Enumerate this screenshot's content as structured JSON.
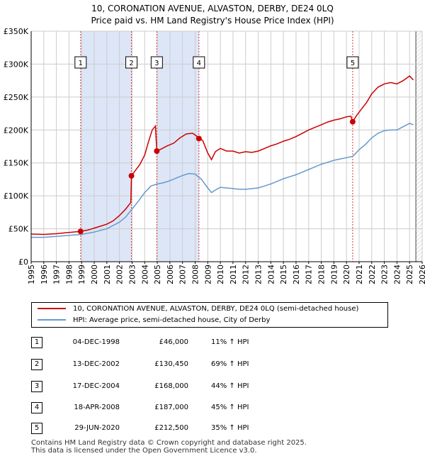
{
  "title_line1": "10, CORONATION AVENUE, ALVASTON, DERBY, DE24 0LQ",
  "title_line2": "Price paid vs. HM Land Registry's House Price Index (HPI)",
  "colors": {
    "price": "#cc0000",
    "hpi": "#6699cc",
    "shade": "#dde6f7",
    "grid": "#cccccc",
    "vline": "#dd3333"
  },
  "chart_data": {
    "type": "line",
    "xlim": [
      1995,
      2026
    ],
    "ylim": [
      0,
      350000
    ],
    "y_ticks": [
      0,
      50000,
      100000,
      150000,
      200000,
      250000,
      300000,
      350000
    ],
    "y_tick_labels": [
      "£0",
      "£50K",
      "£100K",
      "£150K",
      "£200K",
      "£250K",
      "£300K",
      "£350K"
    ],
    "x_ticks": [
      "1995",
      "1996",
      "1997",
      "1998",
      "1999",
      "2000",
      "2001",
      "2002",
      "2003",
      "2004",
      "2005",
      "2006",
      "2007",
      "2008",
      "2009",
      "2010",
      "2011",
      "2012",
      "2013",
      "2014",
      "2015",
      "2016",
      "2017",
      "2018",
      "2019",
      "2020",
      "2021",
      "2022",
      "2023",
      "2024",
      "2025",
      "2026"
    ],
    "series": [
      {
        "name": "10, CORONATION AVENUE, ALVASTON, DERBY, DE24 0LQ (semi-detached house)",
        "points": [
          [
            1995.0,
            42000
          ],
          [
            1996.0,
            41500
          ],
          [
            1997.0,
            42500
          ],
          [
            1998.0,
            44500
          ],
          [
            1998.92,
            46000
          ],
          [
            1999.5,
            48000
          ],
          [
            2000.0,
            51000
          ],
          [
            2000.5,
            54000
          ],
          [
            2001.0,
            57000
          ],
          [
            2001.5,
            62000
          ],
          [
            2002.0,
            70000
          ],
          [
            2002.5,
            80000
          ],
          [
            2002.9,
            90000
          ],
          [
            2002.95,
            130450
          ],
          [
            2003.2,
            137000
          ],
          [
            2003.6,
            147000
          ],
          [
            2004.0,
            162000
          ],
          [
            2004.3,
            182000
          ],
          [
            2004.6,
            200000
          ],
          [
            2004.85,
            206000
          ],
          [
            2004.96,
            168000
          ],
          [
            2005.3,
            171000
          ],
          [
            2005.8,
            176000
          ],
          [
            2006.3,
            180000
          ],
          [
            2006.8,
            188000
          ],
          [
            2007.3,
            194000
          ],
          [
            2007.8,
            195000
          ],
          [
            2008.1,
            191000
          ],
          [
            2008.3,
            187000
          ],
          [
            2008.6,
            184000
          ],
          [
            2009.0,
            165000
          ],
          [
            2009.3,
            155000
          ],
          [
            2009.6,
            167000
          ],
          [
            2010.0,
            172000
          ],
          [
            2010.5,
            168000
          ],
          [
            2011.0,
            168000
          ],
          [
            2011.5,
            165000
          ],
          [
            2012.0,
            167000
          ],
          [
            2012.5,
            166000
          ],
          [
            2013.0,
            168000
          ],
          [
            2013.5,
            172000
          ],
          [
            2014.0,
            176000
          ],
          [
            2014.5,
            179000
          ],
          [
            2015.0,
            183000
          ],
          [
            2015.5,
            186000
          ],
          [
            2016.0,
            190000
          ],
          [
            2016.5,
            195000
          ],
          [
            2017.0,
            200000
          ],
          [
            2017.5,
            204000
          ],
          [
            2018.0,
            208000
          ],
          [
            2018.5,
            212000
          ],
          [
            2019.0,
            215000
          ],
          [
            2019.5,
            217000
          ],
          [
            2020.0,
            220000
          ],
          [
            2020.35,
            221000
          ],
          [
            2020.49,
            212500
          ],
          [
            2020.8,
            222000
          ],
          [
            2021.2,
            232000
          ],
          [
            2021.6,
            242000
          ],
          [
            2022.0,
            255000
          ],
          [
            2022.5,
            265000
          ],
          [
            2023.0,
            270000
          ],
          [
            2023.5,
            272000
          ],
          [
            2024.0,
            270000
          ],
          [
            2024.5,
            275000
          ],
          [
            2025.0,
            282000
          ],
          [
            2025.3,
            276000
          ]
        ]
      },
      {
        "name": "HPI: Average price, semi-detached house, City of Derby",
        "points": [
          [
            1995.0,
            37000
          ],
          [
            1996.0,
            37000
          ],
          [
            1997.0,
            38500
          ],
          [
            1998.0,
            40000
          ],
          [
            1999.0,
            41500
          ],
          [
            2000.0,
            45000
          ],
          [
            2001.0,
            50000
          ],
          [
            2002.0,
            60000
          ],
          [
            2002.5,
            68000
          ],
          [
            2003.0,
            80000
          ],
          [
            2003.5,
            92000
          ],
          [
            2004.0,
            105000
          ],
          [
            2004.5,
            115000
          ],
          [
            2005.0,
            118000
          ],
          [
            2005.5,
            120000
          ],
          [
            2006.0,
            123000
          ],
          [
            2006.5,
            127000
          ],
          [
            2007.0,
            131000
          ],
          [
            2007.5,
            134000
          ],
          [
            2008.0,
            133000
          ],
          [
            2008.5,
            125000
          ],
          [
            2009.0,
            112000
          ],
          [
            2009.3,
            105000
          ],
          [
            2009.7,
            110000
          ],
          [
            2010.0,
            113000
          ],
          [
            2010.5,
            112000
          ],
          [
            2011.0,
            111000
          ],
          [
            2011.5,
            110000
          ],
          [
            2012.0,
            110000
          ],
          [
            2012.5,
            111000
          ],
          [
            2013.0,
            112000
          ],
          [
            2013.5,
            115000
          ],
          [
            2014.0,
            118000
          ],
          [
            2014.5,
            122000
          ],
          [
            2015.0,
            126000
          ],
          [
            2015.5,
            129000
          ],
          [
            2016.0,
            132000
          ],
          [
            2016.5,
            136000
          ],
          [
            2017.0,
            140000
          ],
          [
            2017.5,
            144000
          ],
          [
            2018.0,
            148000
          ],
          [
            2018.5,
            151000
          ],
          [
            2019.0,
            154000
          ],
          [
            2019.5,
            156000
          ],
          [
            2020.0,
            158000
          ],
          [
            2020.5,
            160000
          ],
          [
            2021.0,
            170000
          ],
          [
            2021.5,
            178000
          ],
          [
            2022.0,
            188000
          ],
          [
            2022.5,
            195000
          ],
          [
            2023.0,
            199000
          ],
          [
            2023.5,
            200000
          ],
          [
            2024.0,
            200000
          ],
          [
            2024.5,
            205000
          ],
          [
            2025.0,
            210000
          ],
          [
            2025.3,
            208000
          ]
        ]
      }
    ],
    "sales": [
      {
        "id": "1",
        "x": 1998.92,
        "price": 46000
      },
      {
        "id": "2",
        "x": 2002.95,
        "price": 130450
      },
      {
        "id": "3",
        "x": 2004.96,
        "price": 168000
      },
      {
        "id": "4",
        "x": 2008.3,
        "price": 187000
      },
      {
        "id": "5",
        "x": 2020.49,
        "price": 212500
      }
    ],
    "shaded_ranges": [
      [
        1998.92,
        2002.95
      ],
      [
        2004.96,
        2008.3
      ]
    ],
    "hatched_from": 2025.5
  },
  "legend": {
    "price_label": "10, CORONATION AVENUE, ALVASTON, DERBY, DE24 0LQ (semi-detached house)",
    "hpi_label": "HPI: Average price, semi-detached house, City of Derby"
  },
  "transactions": [
    {
      "num": "1",
      "date": "04-DEC-1998",
      "price": "£46,000",
      "hpi": "11% ↑ HPI"
    },
    {
      "num": "2",
      "date": "13-DEC-2002",
      "price": "£130,450",
      "hpi": "69% ↑ HPI"
    },
    {
      "num": "3",
      "date": "17-DEC-2004",
      "price": "£168,000",
      "hpi": "44% ↑ HPI"
    },
    {
      "num": "4",
      "date": "18-APR-2008",
      "price": "£187,000",
      "hpi": "45% ↑ HPI"
    },
    {
      "num": "5",
      "date": "29-JUN-2020",
      "price": "£212,500",
      "hpi": "35% ↑ HPI"
    }
  ],
  "footer": {
    "line1": "Contains HM Land Registry data © Crown copyright and database right 2025.",
    "line2": "This data is licensed under the Open Government Licence v3.0."
  }
}
